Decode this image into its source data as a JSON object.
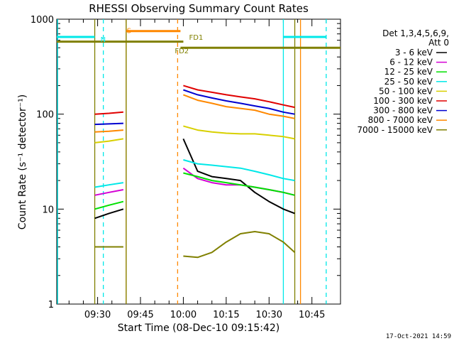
{
  "chart_data": {
    "type": "line",
    "title": "RHESSI Observing Summary Count Rates",
    "xlabel": "Start Time (08-Dec-10 09:15:42)",
    "ylabel": "Count Rate (s⁻¹ detector⁻¹)",
    "y_scale": "log",
    "ylim": [
      1,
      1000
    ],
    "xlim": [
      "09:15:42",
      "10:55"
    ],
    "x_ticks": [
      "09:30",
      "09:45",
      "10:00",
      "10:15",
      "10:30",
      "10:45"
    ],
    "y_ticks": [
      "1",
      "10",
      "100",
      "1000"
    ],
    "grid": false,
    "legend_title": [
      "Det 1,3,4,5,6,9,",
      "Att 0"
    ],
    "legend_position": "right",
    "segments": [
      [
        "09:29",
        "09:39"
      ],
      [
        "10:00",
        "10:39"
      ]
    ],
    "series": [
      {
        "name": "3 - 6 keV",
        "color": "#000000",
        "values": [
          {
            "x": "09:29",
            "y": 8
          },
          {
            "x": "09:34",
            "y": 9
          },
          {
            "x": "09:39",
            "y": 10
          },
          {
            "x": "10:00",
            "y": 55
          },
          {
            "x": "10:05",
            "y": 25
          },
          {
            "x": "10:10",
            "y": 22
          },
          {
            "x": "10:15",
            "y": 21
          },
          {
            "x": "10:20",
            "y": 20
          },
          {
            "x": "10:25",
            "y": 15
          },
          {
            "x": "10:30",
            "y": 12
          },
          {
            "x": "10:35",
            "y": 10
          },
          {
            "x": "10:39",
            "y": 9
          }
        ]
      },
      {
        "name": "6 - 12 keV",
        "color": "#d400d4",
        "values": [
          {
            "x": "09:29",
            "y": 14
          },
          {
            "x": "09:34",
            "y": 15
          },
          {
            "x": "09:39",
            "y": 16
          },
          {
            "x": "10:00",
            "y": 27
          },
          {
            "x": "10:05",
            "y": 21
          },
          {
            "x": "10:10",
            "y": 19
          },
          {
            "x": "10:15",
            "y": 18
          },
          {
            "x": "10:20",
            "y": 18
          },
          {
            "x": "10:25",
            "y": 17
          },
          {
            "x": "10:30",
            "y": 16
          },
          {
            "x": "10:35",
            "y": 15
          },
          {
            "x": "10:39",
            "y": 14
          }
        ]
      },
      {
        "name": "12 - 25 keV",
        "color": "#00e000",
        "values": [
          {
            "x": "09:29",
            "y": 10
          },
          {
            "x": "09:34",
            "y": 11
          },
          {
            "x": "09:39",
            "y": 12
          },
          {
            "x": "10:00",
            "y": 24
          },
          {
            "x": "10:05",
            "y": 22
          },
          {
            "x": "10:10",
            "y": 20
          },
          {
            "x": "10:15",
            "y": 19
          },
          {
            "x": "10:20",
            "y": 18
          },
          {
            "x": "10:25",
            "y": 17
          },
          {
            "x": "10:30",
            "y": 16
          },
          {
            "x": "10:35",
            "y": 15
          },
          {
            "x": "10:39",
            "y": 14
          }
        ]
      },
      {
        "name": "25 - 50 keV",
        "color": "#00e8e8",
        "values": [
          {
            "x": "09:29",
            "y": 17
          },
          {
            "x": "09:34",
            "y": 18
          },
          {
            "x": "09:39",
            "y": 19
          },
          {
            "x": "10:00",
            "y": 33
          },
          {
            "x": "10:05",
            "y": 30
          },
          {
            "x": "10:10",
            "y": 29
          },
          {
            "x": "10:15",
            "y": 28
          },
          {
            "x": "10:20",
            "y": 27
          },
          {
            "x": "10:25",
            "y": 25
          },
          {
            "x": "10:30",
            "y": 23
          },
          {
            "x": "10:35",
            "y": 21
          },
          {
            "x": "10:39",
            "y": 20
          }
        ]
      },
      {
        "name": "50 - 100 keV",
        "color": "#d8d000",
        "values": [
          {
            "x": "09:29",
            "y": 50
          },
          {
            "x": "09:34",
            "y": 52
          },
          {
            "x": "09:39",
            "y": 55
          },
          {
            "x": "10:00",
            "y": 75
          },
          {
            "x": "10:05",
            "y": 68
          },
          {
            "x": "10:10",
            "y": 65
          },
          {
            "x": "10:15",
            "y": 63
          },
          {
            "x": "10:20",
            "y": 62
          },
          {
            "x": "10:25",
            "y": 62
          },
          {
            "x": "10:30",
            "y": 60
          },
          {
            "x": "10:35",
            "y": 58
          },
          {
            "x": "10:39",
            "y": 55
          }
        ]
      },
      {
        "name": "100 - 300 keV",
        "color": "#e00000",
        "values": [
          {
            "x": "09:29",
            "y": 100
          },
          {
            "x": "09:34",
            "y": 102
          },
          {
            "x": "09:39",
            "y": 105
          },
          {
            "x": "10:00",
            "y": 200
          },
          {
            "x": "10:05",
            "y": 180
          },
          {
            "x": "10:10",
            "y": 170
          },
          {
            "x": "10:15",
            "y": 160
          },
          {
            "x": "10:20",
            "y": 152
          },
          {
            "x": "10:25",
            "y": 145
          },
          {
            "x": "10:30",
            "y": 135
          },
          {
            "x": "10:35",
            "y": 125
          },
          {
            "x": "10:39",
            "y": 118
          }
        ]
      },
      {
        "name": "300 - 800 keV",
        "color": "#0000d0",
        "values": [
          {
            "x": "09:29",
            "y": 78
          },
          {
            "x": "09:34",
            "y": 79
          },
          {
            "x": "09:39",
            "y": 80
          },
          {
            "x": "10:00",
            "y": 180
          },
          {
            "x": "10:05",
            "y": 160
          },
          {
            "x": "10:10",
            "y": 148
          },
          {
            "x": "10:15",
            "y": 138
          },
          {
            "x": "10:20",
            "y": 130
          },
          {
            "x": "10:25",
            "y": 122
          },
          {
            "x": "10:30",
            "y": 115
          },
          {
            "x": "10:35",
            "y": 105
          },
          {
            "x": "10:39",
            "y": 100
          }
        ]
      },
      {
        "name": "800 - 7000 keV",
        "color": "#ff8800",
        "values": [
          {
            "x": "09:29",
            "y": 65
          },
          {
            "x": "09:34",
            "y": 66
          },
          {
            "x": "09:39",
            "y": 68
          },
          {
            "x": "10:00",
            "y": 160
          },
          {
            "x": "10:05",
            "y": 140
          },
          {
            "x": "10:10",
            "y": 130
          },
          {
            "x": "10:15",
            "y": 120
          },
          {
            "x": "10:20",
            "y": 115
          },
          {
            "x": "10:25",
            "y": 110
          },
          {
            "x": "10:30",
            "y": 100
          },
          {
            "x": "10:35",
            "y": 95
          },
          {
            "x": "10:39",
            "y": 90
          }
        ]
      },
      {
        "name": "7000 - 15000 keV",
        "color": "#808000",
        "values": [
          {
            "x": "09:29",
            "y": 4
          },
          {
            "x": "09:34",
            "y": 4
          },
          {
            "x": "09:39",
            "y": 4
          },
          {
            "x": "10:00",
            "y": 3.2
          },
          {
            "x": "10:05",
            "y": 3.1
          },
          {
            "x": "10:10",
            "y": 3.5
          },
          {
            "x": "10:15",
            "y": 4.5
          },
          {
            "x": "10:20",
            "y": 5.5
          },
          {
            "x": "10:25",
            "y": 5.8
          },
          {
            "x": "10:30",
            "y": 5.5
          },
          {
            "x": "10:35",
            "y": 4.5
          },
          {
            "x": "10:39",
            "y": 3.5
          }
        ]
      }
    ],
    "vertical_markers": [
      {
        "time": "09:16",
        "color": "#00e8e8",
        "style": "solid"
      },
      {
        "time": "09:32",
        "color": "#00e8e8",
        "style": "dashed"
      },
      {
        "time": "09:29",
        "color": "#808000",
        "style": "solid"
      },
      {
        "time": "09:40",
        "color": "#ff8800",
        "style": "solid"
      },
      {
        "time": "09:40",
        "color": "#808000",
        "style": "solid"
      },
      {
        "time": "09:58",
        "color": "#ff8800",
        "style": "dashed"
      },
      {
        "time": "10:35",
        "color": "#00e8e8",
        "style": "solid"
      },
      {
        "time": "10:39",
        "color": "#808000",
        "style": "solid"
      },
      {
        "time": "10:41",
        "color": "#ff8800",
        "style": "solid"
      },
      {
        "time": "10:50",
        "color": "#00e8e8",
        "style": "dashed"
      }
    ],
    "flag_bars": [
      {
        "label": "N",
        "color": "#00e8e8",
        "ranges": [
          [
            "09:15:42",
            "09:29"
          ],
          [
            "10:35",
            "10:50"
          ]
        ],
        "y": 650
      },
      {
        "label": "S",
        "color": "#ff8800",
        "ranges": [
          [
            "09:40",
            "09:59"
          ]
        ],
        "y": 750
      },
      {
        "label": "FD1",
        "color": "#808000",
        "ranges": [
          [
            "09:15:42",
            "10:00"
          ]
        ],
        "y": 580
      },
      {
        "label": "FD2",
        "color": "#808000",
        "ranges": [
          [
            "09:59",
            "10:55"
          ]
        ],
        "y": 500
      }
    ],
    "footer_text": "17-Oct-2021 14:59"
  }
}
